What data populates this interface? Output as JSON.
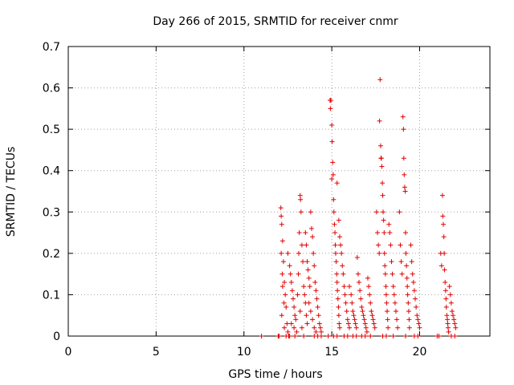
{
  "chart_data": {
    "type": "scatter",
    "title": "Day 266 of 2015, SRMTID for receiver cnmr",
    "xlabel": "GPS time / hours",
    "ylabel": "SRMTID / TECUs",
    "xlim": [
      0,
      24
    ],
    "ylim": [
      0,
      0.7
    ],
    "xticks": [
      0,
      5,
      10,
      15,
      20
    ],
    "yticks": [
      0,
      0.1,
      0.2,
      0.3,
      0.4,
      0.5,
      0.6,
      0.7
    ],
    "xtick_labels": [
      "0",
      "5",
      "10",
      "15",
      "20"
    ],
    "ytick_labels": [
      "0",
      "0.1",
      "0.2",
      "0.3",
      "0.4",
      "0.5",
      "0.6",
      "0.7"
    ],
    "grid": true,
    "marker": "+",
    "color": "#e00000",
    "series": [
      {
        "name": "SRMTID",
        "points": [
          [
            11.0,
            0.0
          ],
          [
            11.95,
            0.0
          ],
          [
            12.0,
            0.0
          ],
          [
            12.1,
            0.31
          ],
          [
            12.12,
            0.29
          ],
          [
            12.15,
            0.27
          ],
          [
            12.2,
            0.23
          ],
          [
            12.12,
            0.2
          ],
          [
            12.25,
            0.18
          ],
          [
            12.18,
            0.15
          ],
          [
            12.3,
            0.13
          ],
          [
            12.2,
            0.12
          ],
          [
            12.35,
            0.1
          ],
          [
            12.28,
            0.08
          ],
          [
            12.4,
            0.07
          ],
          [
            12.15,
            0.05
          ],
          [
            12.45,
            0.03
          ],
          [
            12.3,
            0.02
          ],
          [
            12.5,
            0.01
          ],
          [
            12.55,
            0.0
          ],
          [
            12.4,
            0.0
          ],
          [
            12.5,
            0.2
          ],
          [
            12.6,
            0.17
          ],
          [
            12.65,
            0.15
          ],
          [
            12.7,
            0.13
          ],
          [
            12.75,
            0.11
          ],
          [
            12.8,
            0.09
          ],
          [
            12.85,
            0.07
          ],
          [
            12.9,
            0.05
          ],
          [
            12.95,
            0.04
          ],
          [
            12.7,
            0.03
          ],
          [
            12.85,
            0.02
          ],
          [
            13.0,
            0.01
          ],
          [
            12.6,
            0.0
          ],
          [
            12.9,
            0.0
          ],
          [
            13.05,
            0.1
          ],
          [
            13.1,
            0.15
          ],
          [
            13.12,
            0.2
          ],
          [
            13.15,
            0.25
          ],
          [
            13.2,
            0.34
          ],
          [
            13.22,
            0.33
          ],
          [
            13.25,
            0.3
          ],
          [
            13.3,
            0.22
          ],
          [
            13.35,
            0.18
          ],
          [
            13.4,
            0.12
          ],
          [
            13.45,
            0.1
          ],
          [
            13.5,
            0.08
          ],
          [
            13.55,
            0.05
          ],
          [
            13.6,
            0.03
          ],
          [
            13.2,
            0.06
          ],
          [
            13.3,
            0.02
          ],
          [
            13.4,
            0.0
          ],
          [
            13.5,
            0.25
          ],
          [
            13.55,
            0.22
          ],
          [
            13.6,
            0.18
          ],
          [
            13.65,
            0.16
          ],
          [
            13.7,
            0.14
          ],
          [
            13.75,
            0.12
          ],
          [
            13.8,
            0.3
          ],
          [
            13.85,
            0.26
          ],
          [
            13.9,
            0.24
          ],
          [
            13.95,
            0.2
          ],
          [
            14.0,
            0.17
          ],
          [
            14.05,
            0.13
          ],
          [
            14.1,
            0.11
          ],
          [
            13.7,
            0.08
          ],
          [
            13.8,
            0.06
          ],
          [
            13.9,
            0.04
          ],
          [
            14.0,
            0.02
          ],
          [
            14.1,
            0.01
          ],
          [
            14.15,
            0.09
          ],
          [
            14.2,
            0.07
          ],
          [
            14.25,
            0.05
          ],
          [
            14.3,
            0.03
          ],
          [
            14.35,
            0.02
          ],
          [
            14.4,
            0.01
          ],
          [
            14.2,
            0.0
          ],
          [
            14.0,
            0.0
          ],
          [
            14.4,
            0.0
          ],
          [
            14.8,
            0.0
          ],
          [
            14.9,
            0.57
          ],
          [
            14.95,
            0.57
          ],
          [
            14.92,
            0.55
          ],
          [
            15.0,
            0.51
          ],
          [
            15.02,
            0.47
          ],
          [
            15.05,
            0.42
          ],
          [
            15.08,
            0.39
          ],
          [
            15.0,
            0.38
          ],
          [
            15.1,
            0.33
          ],
          [
            15.12,
            0.3
          ],
          [
            15.15,
            0.27
          ],
          [
            15.18,
            0.25
          ],
          [
            15.2,
            0.22
          ],
          [
            15.22,
            0.2
          ],
          [
            15.25,
            0.18
          ],
          [
            15.28,
            0.15
          ],
          [
            15.3,
            0.13
          ],
          [
            15.32,
            0.11
          ],
          [
            15.35,
            0.09
          ],
          [
            15.38,
            0.07
          ],
          [
            15.4,
            0.05
          ],
          [
            15.42,
            0.03
          ],
          [
            15.45,
            0.02
          ],
          [
            15.1,
            0.0
          ],
          [
            15.3,
            0.0
          ],
          [
            15.3,
            0.37
          ],
          [
            15.4,
            0.28
          ],
          [
            15.45,
            0.24
          ],
          [
            15.5,
            0.22
          ],
          [
            15.55,
            0.2
          ],
          [
            15.6,
            0.17
          ],
          [
            15.65,
            0.15
          ],
          [
            15.7,
            0.12
          ],
          [
            15.75,
            0.1
          ],
          [
            15.8,
            0.08
          ],
          [
            15.85,
            0.06
          ],
          [
            15.9,
            0.04
          ],
          [
            15.95,
            0.03
          ],
          [
            16.0,
            0.02
          ],
          [
            15.7,
            0.0
          ],
          [
            15.9,
            0.0
          ],
          [
            16.0,
            0.12
          ],
          [
            16.1,
            0.1
          ],
          [
            16.15,
            0.08
          ],
          [
            16.2,
            0.06
          ],
          [
            16.25,
            0.05
          ],
          [
            16.3,
            0.04
          ],
          [
            16.35,
            0.03
          ],
          [
            16.4,
            0.02
          ],
          [
            16.2,
            0.0
          ],
          [
            16.4,
            0.0
          ],
          [
            16.45,
            0.19
          ],
          [
            16.5,
            0.15
          ],
          [
            16.55,
            0.13
          ],
          [
            16.6,
            0.11
          ],
          [
            16.65,
            0.09
          ],
          [
            16.7,
            0.07
          ],
          [
            16.75,
            0.06
          ],
          [
            16.8,
            0.05
          ],
          [
            16.85,
            0.04
          ],
          [
            16.9,
            0.03
          ],
          [
            16.95,
            0.02
          ],
          [
            17.0,
            0.01
          ],
          [
            16.7,
            0.0
          ],
          [
            16.9,
            0.0
          ],
          [
            17.05,
            0.14
          ],
          [
            17.1,
            0.12
          ],
          [
            17.15,
            0.1
          ],
          [
            17.2,
            0.08
          ],
          [
            17.25,
            0.06
          ],
          [
            17.3,
            0.05
          ],
          [
            17.35,
            0.04
          ],
          [
            17.4,
            0.03
          ],
          [
            17.45,
            0.02
          ],
          [
            17.2,
            0.0
          ],
          [
            17.55,
            0.3
          ],
          [
            17.6,
            0.25
          ],
          [
            17.65,
            0.22
          ],
          [
            17.7,
            0.2
          ],
          [
            17.75,
            0.62
          ],
          [
            17.72,
            0.52
          ],
          [
            17.78,
            0.46
          ],
          [
            17.8,
            0.43
          ],
          [
            17.82,
            0.43
          ],
          [
            17.85,
            0.41
          ],
          [
            17.88,
            0.37
          ],
          [
            17.9,
            0.34
          ],
          [
            17.92,
            0.3
          ],
          [
            17.95,
            0.28
          ],
          [
            17.98,
            0.25
          ],
          [
            18.0,
            0.2
          ],
          [
            18.02,
            0.17
          ],
          [
            18.05,
            0.15
          ],
          [
            18.08,
            0.12
          ],
          [
            18.1,
            0.1
          ],
          [
            18.12,
            0.08
          ],
          [
            18.15,
            0.06
          ],
          [
            18.18,
            0.04
          ],
          [
            18.2,
            0.02
          ],
          [
            17.9,
            0.0
          ],
          [
            18.1,
            0.0
          ],
          [
            18.25,
            0.27
          ],
          [
            18.3,
            0.25
          ],
          [
            18.35,
            0.22
          ],
          [
            18.4,
            0.18
          ],
          [
            18.45,
            0.15
          ],
          [
            18.5,
            0.12
          ],
          [
            18.55,
            0.1
          ],
          [
            18.6,
            0.08
          ],
          [
            18.65,
            0.06
          ],
          [
            18.7,
            0.04
          ],
          [
            18.75,
            0.02
          ],
          [
            18.5,
            0.0
          ],
          [
            18.85,
            0.3
          ],
          [
            18.9,
            0.22
          ],
          [
            18.95,
            0.18
          ],
          [
            19.0,
            0.15
          ],
          [
            19.05,
            0.53
          ],
          [
            19.08,
            0.5
          ],
          [
            19.1,
            0.43
          ],
          [
            19.12,
            0.39
          ],
          [
            19.15,
            0.36
          ],
          [
            19.18,
            0.35
          ],
          [
            19.2,
            0.25
          ],
          [
            19.22,
            0.2
          ],
          [
            19.25,
            0.17
          ],
          [
            19.28,
            0.14
          ],
          [
            19.3,
            0.12
          ],
          [
            19.32,
            0.1
          ],
          [
            19.35,
            0.08
          ],
          [
            19.38,
            0.06
          ],
          [
            19.4,
            0.04
          ],
          [
            19.42,
            0.02
          ],
          [
            19.2,
            0.0
          ],
          [
            19.5,
            0.22
          ],
          [
            19.55,
            0.18
          ],
          [
            19.6,
            0.15
          ],
          [
            19.65,
            0.13
          ],
          [
            19.7,
            0.11
          ],
          [
            19.75,
            0.09
          ],
          [
            19.8,
            0.07
          ],
          [
            19.85,
            0.05
          ],
          [
            19.9,
            0.04
          ],
          [
            19.95,
            0.03
          ],
          [
            20.0,
            0.02
          ],
          [
            19.7,
            0.0
          ],
          [
            19.9,
            0.0
          ],
          [
            21.0,
            0.0
          ],
          [
            21.1,
            0.0
          ],
          [
            21.2,
            0.2
          ],
          [
            21.25,
            0.17
          ],
          [
            21.3,
            0.34
          ],
          [
            21.32,
            0.29
          ],
          [
            21.35,
            0.27
          ],
          [
            21.38,
            0.24
          ],
          [
            21.4,
            0.2
          ],
          [
            21.42,
            0.16
          ],
          [
            21.45,
            0.13
          ],
          [
            21.48,
            0.11
          ],
          [
            21.5,
            0.09
          ],
          [
            21.52,
            0.07
          ],
          [
            21.55,
            0.05
          ],
          [
            21.58,
            0.04
          ],
          [
            21.6,
            0.03
          ],
          [
            21.62,
            0.02
          ],
          [
            21.65,
            0.01
          ],
          [
            21.7,
            0.12
          ],
          [
            21.75,
            0.1
          ],
          [
            21.8,
            0.08
          ],
          [
            21.85,
            0.06
          ],
          [
            21.9,
            0.05
          ],
          [
            21.95,
            0.04
          ],
          [
            22.0,
            0.03
          ],
          [
            22.05,
            0.02
          ],
          [
            21.8,
            0.0
          ],
          [
            22.0,
            0.0
          ]
        ]
      }
    ]
  }
}
